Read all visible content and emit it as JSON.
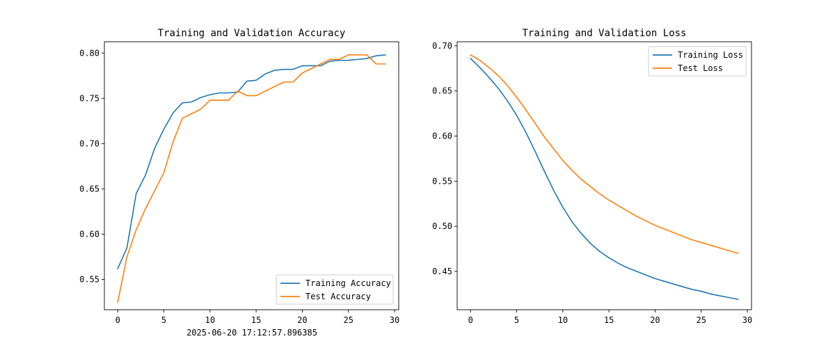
{
  "footer_text": "2025-06-20 17:12:57.896385",
  "chart_data": [
    {
      "type": "line",
      "title": "Training and Validation Accuracy",
      "xlabel": "",
      "ylabel": "",
      "xlim": [
        -1.45,
        30.45
      ],
      "ylim": [
        0.5165,
        0.8125
      ],
      "xticks": [
        0,
        5,
        10,
        15,
        20,
        25,
        30
      ],
      "yticks": [
        0.55,
        0.6,
        0.65,
        0.7,
        0.75,
        0.8
      ],
      "ytick_labels": [
        "0.55",
        "0.60",
        "0.65",
        "0.70",
        "0.75",
        "0.80"
      ],
      "legend_position": "lower-right",
      "grid": false,
      "x": [
        0,
        1,
        2,
        3,
        4,
        5,
        6,
        7,
        8,
        9,
        10,
        11,
        12,
        13,
        14,
        15,
        16,
        17,
        18,
        19,
        20,
        21,
        22,
        23,
        24,
        25,
        26,
        27,
        28,
        29
      ],
      "series": [
        {
          "name": "Training Accuracy",
          "color": "#1f77b4",
          "values": [
            0.562,
            0.585,
            0.645,
            0.665,
            0.695,
            0.716,
            0.734,
            0.745,
            0.746,
            0.751,
            0.754,
            0.756,
            0.756,
            0.757,
            0.769,
            0.77,
            0.777,
            0.781,
            0.782,
            0.782,
            0.786,
            0.786,
            0.786,
            0.791,
            0.792,
            0.792,
            0.793,
            0.794,
            0.797,
            0.798
          ]
        },
        {
          "name": "Test Accuracy",
          "color": "#ff7f0e",
          "values": [
            0.525,
            0.575,
            0.605,
            0.628,
            0.648,
            0.668,
            0.702,
            0.728,
            0.733,
            0.738,
            0.748,
            0.748,
            0.748,
            0.758,
            0.753,
            0.753,
            0.758,
            0.763,
            0.768,
            0.768,
            0.778,
            0.783,
            0.788,
            0.793,
            0.793,
            0.798,
            0.798,
            0.798,
            0.788,
            0.788
          ]
        }
      ]
    },
    {
      "type": "line",
      "title": "Training and Validation Loss",
      "xlabel": "",
      "ylabel": "",
      "xlim": [
        -1.45,
        30.45
      ],
      "ylim": [
        0.4075,
        0.7045
      ],
      "xticks": [
        0,
        5,
        10,
        15,
        20,
        25,
        30
      ],
      "yticks": [
        0.45,
        0.5,
        0.55,
        0.6,
        0.65,
        0.7
      ],
      "ytick_labels": [
        "0.45",
        "0.50",
        "0.55",
        "0.60",
        "0.65",
        "0.70"
      ],
      "legend_position": "upper-right",
      "grid": false,
      "x": [
        0,
        1,
        2,
        3,
        4,
        5,
        6,
        7,
        8,
        9,
        10,
        11,
        12,
        13,
        14,
        15,
        16,
        17,
        18,
        19,
        20,
        21,
        22,
        23,
        24,
        25,
        26,
        27,
        28,
        29
      ],
      "series": [
        {
          "name": "Training Loss",
          "color": "#1f77b4",
          "values": [
            0.686,
            0.676,
            0.665,
            0.653,
            0.639,
            0.623,
            0.604,
            0.583,
            0.561,
            0.54,
            0.521,
            0.505,
            0.492,
            0.481,
            0.472,
            0.465,
            0.459,
            0.454,
            0.45,
            0.446,
            0.442,
            0.439,
            0.436,
            0.433,
            0.43,
            0.428,
            0.425,
            0.423,
            0.421,
            0.419
          ]
        },
        {
          "name": "Test Loss",
          "color": "#ff7f0e",
          "values": [
            0.69,
            0.684,
            0.676,
            0.667,
            0.656,
            0.643,
            0.629,
            0.614,
            0.599,
            0.586,
            0.573,
            0.562,
            0.552,
            0.544,
            0.536,
            0.529,
            0.523,
            0.517,
            0.511,
            0.506,
            0.501,
            0.497,
            0.493,
            0.489,
            0.485,
            0.482,
            0.479,
            0.476,
            0.473,
            0.47
          ]
        }
      ]
    }
  ]
}
